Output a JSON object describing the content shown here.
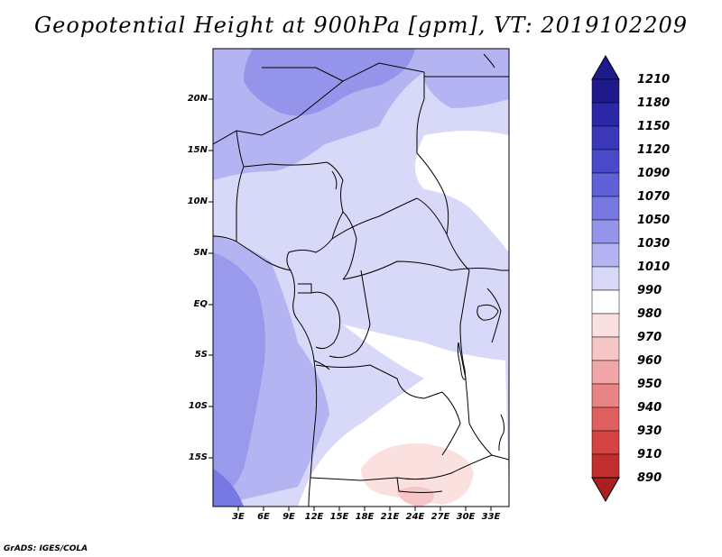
{
  "title": "Geopotential Height at 900hPa [gpm], VT: 2019102209",
  "credit": "GrADS: IGES/COLA",
  "map": {
    "region": "Central and Southern-Central Africa",
    "lat_labels": [
      "20N",
      "15N",
      "10N",
      "5N",
      "EQ",
      "5S",
      "10S",
      "15S"
    ],
    "lon_labels": [
      "3E",
      "6E",
      "9E",
      "12E",
      "15E",
      "18E",
      "21E",
      "24E",
      "27E",
      "30E",
      "33E"
    ]
  },
  "colorbar": {
    "labels": [
      "1210",
      "1180",
      "1150",
      "1120",
      "1090",
      "1070",
      "1050",
      "1030",
      "1010",
      "990",
      "980",
      "970",
      "960",
      "950",
      "940",
      "930",
      "910",
      "890"
    ],
    "colors": [
      "#1e1a8c",
      "#2a28a6",
      "#3a38b8",
      "#4a4ac8",
      "#6060d8",
      "#7878e2",
      "#9494ea",
      "#b4b4f2",
      "#d8d8f8",
      "#ffffff",
      "#fbe0e0",
      "#f6c6c6",
      "#f0a6a6",
      "#e88484",
      "#e06060",
      "#d44444",
      "#c22e2e",
      "#aa2020"
    ]
  }
}
